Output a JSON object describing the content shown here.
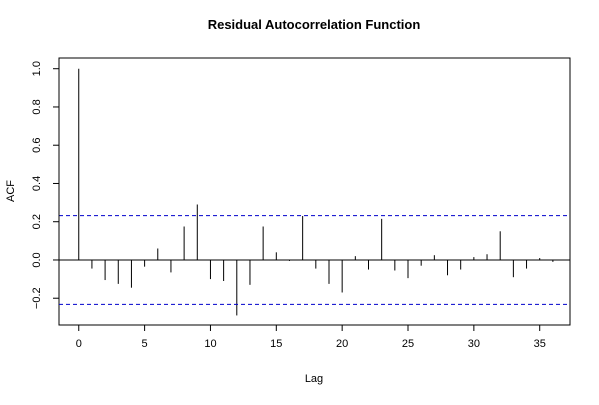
{
  "chart_data": {
    "type": "bar",
    "title": "Residual Autocorrelation Function",
    "xlabel": "Lag",
    "ylabel": "ACF",
    "xlim": [
      -1.5,
      37.3
    ],
    "ylim": [
      -0.34,
      1.056
    ],
    "x_ticks": [
      0,
      5,
      10,
      15,
      20,
      25,
      30,
      35
    ],
    "x_tick_labels": [
      "0",
      "5",
      "10",
      "15",
      "20",
      "25",
      "30",
      "35"
    ],
    "y_ticks": [
      -0.2,
      0.0,
      0.2,
      0.4,
      0.6,
      0.8,
      1.0
    ],
    "y_tick_labels": [
      "−0.2",
      "0.0",
      "0.2",
      "0.4",
      "0.6",
      "0.8",
      "1.0"
    ],
    "lags": [
      0,
      1,
      2,
      3,
      4,
      5,
      6,
      7,
      8,
      9,
      10,
      11,
      12,
      13,
      14,
      15,
      16,
      17,
      18,
      19,
      20,
      21,
      22,
      23,
      24,
      25,
      26,
      27,
      28,
      29,
      30,
      31,
      32,
      33,
      34,
      35,
      36
    ],
    "values": [
      1.0,
      -0.045,
      -0.105,
      -0.125,
      -0.145,
      -0.035,
      0.06,
      -0.065,
      0.175,
      0.29,
      -0.1,
      -0.11,
      -0.29,
      -0.13,
      0.175,
      0.04,
      -0.005,
      0.23,
      -0.045,
      -0.125,
      -0.17,
      0.02,
      -0.05,
      0.215,
      -0.055,
      -0.095,
      -0.03,
      0.025,
      -0.08,
      -0.05,
      0.015,
      0.03,
      0.15,
      -0.09,
      -0.045,
      0.01,
      -0.01
    ],
    "confidence_bounds": [
      0.232,
      -0.232
    ],
    "colors": {
      "bars": "#000000",
      "bounds": "#0000cc",
      "axes": "#000000"
    },
    "grid": false,
    "legend": "none"
  }
}
